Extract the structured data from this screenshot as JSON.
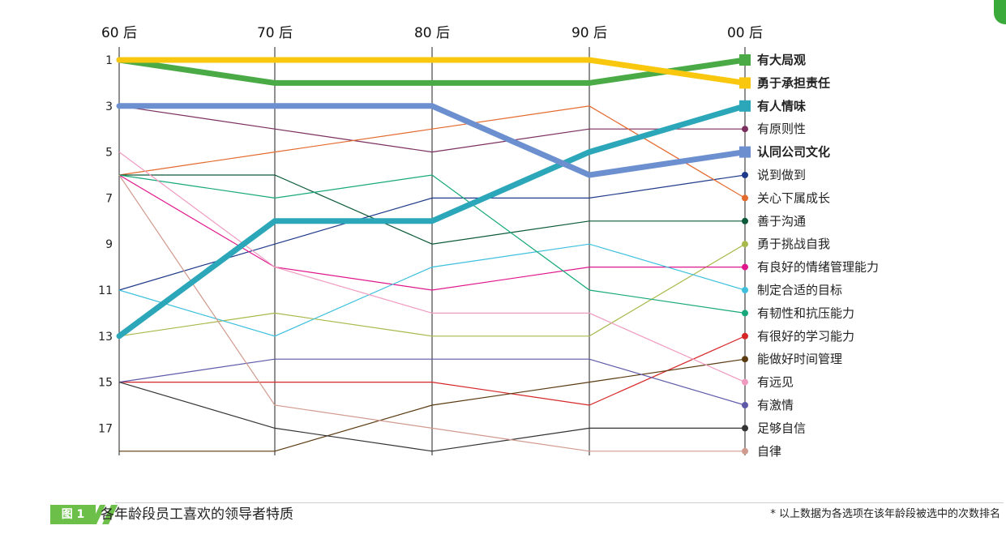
{
  "chart_data": {
    "type": "line",
    "chart_kind": "bump / rank chart",
    "x": [
      "60 后",
      "70 后",
      "80 后",
      "90 后",
      "00 后"
    ],
    "y_ticks": [
      "1",
      "3",
      "5",
      "7",
      "9",
      "11",
      "13",
      "15",
      "17"
    ],
    "y_axis_inverted": true,
    "ylim": [
      1,
      18
    ],
    "grid": "vertical lines at each cohort",
    "legend": "labels at right end of lines",
    "series": [
      {
        "name": "有大局观",
        "values": [
          1,
          2,
          2,
          2,
          1
        ],
        "color": "#4aab46",
        "emphasis": true
      },
      {
        "name": "勇于承担责任",
        "values": [
          1,
          1,
          1,
          1,
          2
        ],
        "color": "#f9c80e",
        "emphasis": true
      },
      {
        "name": "有人情味",
        "values": [
          13,
          8,
          8,
          5,
          3
        ],
        "color": "#2ba7b9",
        "emphasis": true
      },
      {
        "name": "有原则性",
        "values": [
          3,
          4,
          5,
          4,
          4
        ],
        "color": "#7a2f5e",
        "emphasis": false
      },
      {
        "name": "认同公司文化",
        "values": [
          3,
          3,
          3,
          6,
          5
        ],
        "color": "#6b8fcf",
        "emphasis": true
      },
      {
        "name": "说到做到",
        "values": [
          11,
          9,
          7,
          7,
          6
        ],
        "color": "#1f3a8a",
        "emphasis": false
      },
      {
        "name": "关心下属成长",
        "values": [
          6,
          5,
          4,
          3,
          7
        ],
        "color": "#e46a2e",
        "emphasis": false
      },
      {
        "name": "善于沟通",
        "values": [
          6,
          6,
          9,
          8,
          8
        ],
        "color": "#0d5a3a",
        "emphasis": false
      },
      {
        "name": "勇于挑战自我",
        "values": [
          13,
          12,
          13,
          13,
          9
        ],
        "color": "#a8b84a",
        "emphasis": false
      },
      {
        "name": "有良好的情绪管理能力",
        "values": [
          6,
          10,
          11,
          10,
          10
        ],
        "color": "#e0168c",
        "emphasis": false
      },
      {
        "name": "制定合适的目标",
        "values": [
          11,
          13,
          10,
          9,
          11
        ],
        "color": "#3ec0dd",
        "emphasis": false
      },
      {
        "name": "有韧性和抗压能力",
        "values": [
          6,
          7,
          6,
          11,
          12
        ],
        "color": "#16a87a",
        "emphasis": false
      },
      {
        "name": "有很好的学习能力",
        "values": [
          15,
          15,
          15,
          16,
          13
        ],
        "color": "#d62728",
        "emphasis": false
      },
      {
        "name": "能做好时间管理",
        "values": [
          18,
          18,
          16,
          15,
          14
        ],
        "color": "#5a3a10",
        "emphasis": false
      },
      {
        "name": "有远见",
        "values": [
          5,
          10,
          12,
          12,
          15
        ],
        "color": "#f09ac0",
        "emphasis": false
      },
      {
        "name": "有激情",
        "values": [
          15,
          14,
          14,
          14,
          16
        ],
        "color": "#5e5aa8",
        "emphasis": false
      },
      {
        "name": "足够自信",
        "values": [
          15,
          17,
          18,
          17,
          17
        ],
        "color": "#333333",
        "emphasis": false
      },
      {
        "name": "自律",
        "values": [
          6,
          16,
          17,
          18,
          18
        ],
        "color": "#d19a8e",
        "emphasis": false
      }
    ]
  },
  "footer": {
    "badge": "图 1",
    "title": "各年龄段员工喜欢的领导者特质",
    "note": "* 以上数据为各选项在该年龄段被选中的次数排名"
  }
}
